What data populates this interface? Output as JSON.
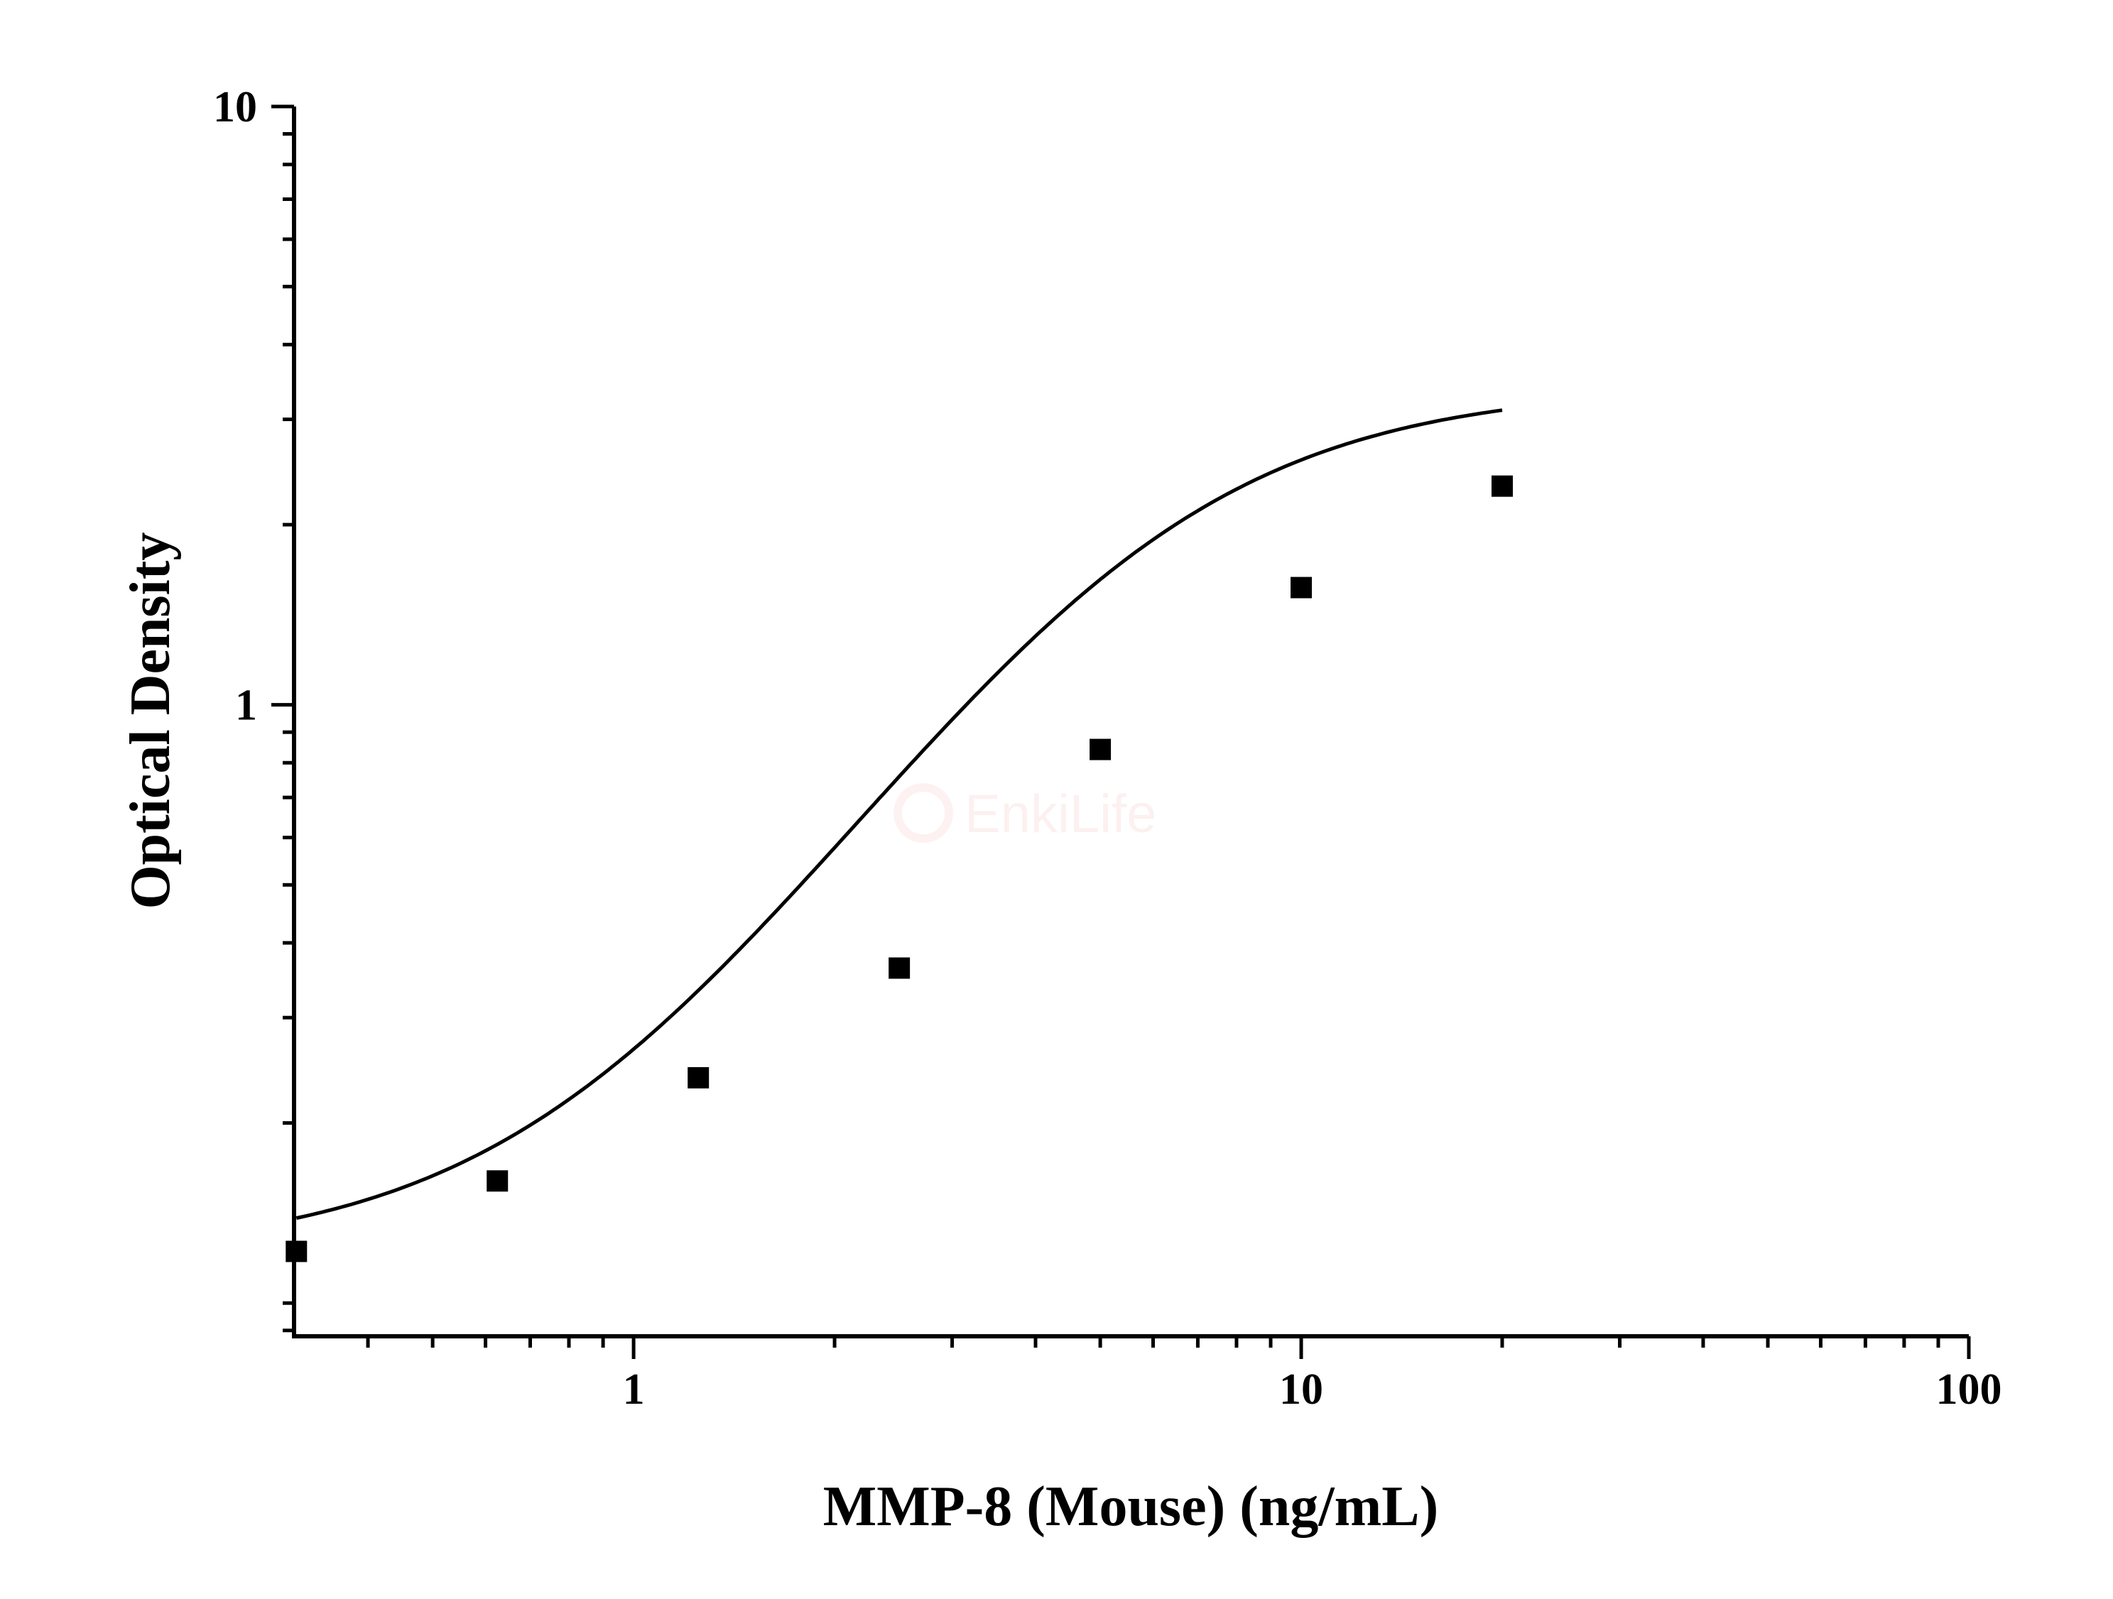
{
  "chart_data": {
    "type": "scatter",
    "xlabel": "MMP-8 (Mouse) (ng/mL)",
    "ylabel": "Optical Density",
    "xscale": "log",
    "yscale": "log",
    "xlim": [
      0.31,
      100
    ],
    "ylim": [
      0.088,
      10
    ],
    "x_ticks": [
      1,
      10,
      100
    ],
    "x_tick_labels": [
      "1",
      "10",
      "100"
    ],
    "y_ticks": [
      1,
      10
    ],
    "y_tick_labels": [
      "1",
      "10"
    ],
    "grid": false,
    "legend": "none",
    "series": [
      {
        "marker": "square",
        "color": "#000000",
        "x": [
          0.3125,
          0.625,
          1.25,
          2.5,
          5,
          10,
          20
        ],
        "y": [
          0.122,
          0.16,
          0.238,
          0.363,
          0.842,
          1.57,
          2.32
        ]
      }
    ],
    "fit_curve": {
      "type": "four-parameter logistic",
      "color": "#000000",
      "x_range": [
        0.3125,
        20
      ],
      "A": 0.12,
      "B": 1.8,
      "C": 5.5,
      "D": 3.4
    }
  },
  "watermark": {
    "text": "EnkiLife",
    "color": "#e0453a"
  }
}
